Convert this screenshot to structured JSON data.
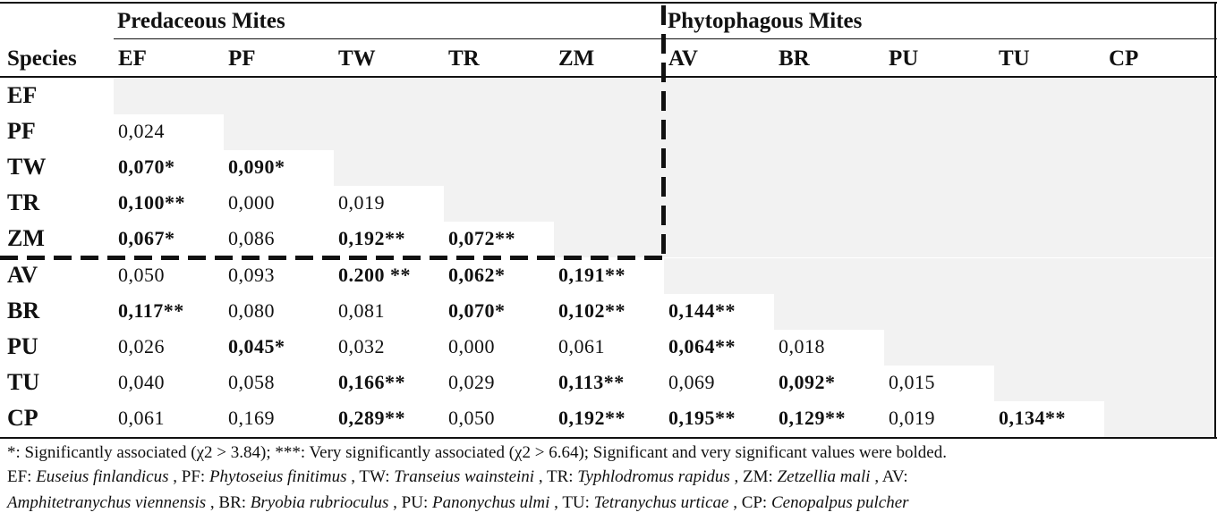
{
  "table": {
    "group_predaceous": "Predaceous Mites",
    "group_phytophagous": "Phytophagous Mites",
    "species_header": "Species",
    "columns": [
      "EF",
      "PF",
      "TW",
      "TR",
      "ZM",
      "AV",
      "BR",
      "PU",
      "TU",
      "CP"
    ],
    "rows": [
      {
        "label": "EF",
        "cells": []
      },
      {
        "label": "PF",
        "cells": [
          {
            "v": "0,024",
            "b": false
          }
        ]
      },
      {
        "label": "TW",
        "cells": [
          {
            "v": "0,070*",
            "b": true
          },
          {
            "v": "0,090*",
            "b": true
          }
        ]
      },
      {
        "label": "TR",
        "cells": [
          {
            "v": "0,100**",
            "b": true
          },
          {
            "v": "0,000",
            "b": false
          },
          {
            "v": "0,019",
            "b": false
          }
        ]
      },
      {
        "label": "ZM",
        "cells": [
          {
            "v": "0,067*",
            "b": true
          },
          {
            "v": "0,086",
            "b": false
          },
          {
            "v": "0,192**",
            "b": true
          },
          {
            "v": "0,072**",
            "b": true
          }
        ]
      },
      {
        "label": "AV",
        "cells": [
          {
            "v": "0,050",
            "b": false
          },
          {
            "v": "0,093",
            "b": false
          },
          {
            "v": "0.200 **",
            "b": true
          },
          {
            "v": "0,062*",
            "b": true
          },
          {
            "v": "0,191**",
            "b": true
          }
        ]
      },
      {
        "label": "BR",
        "cells": [
          {
            "v": "0,117**",
            "b": true
          },
          {
            "v": "0,080",
            "b": false
          },
          {
            "v": "0,081",
            "b": false
          },
          {
            "v": "0,070*",
            "b": true
          },
          {
            "v": "0,102**",
            "b": true
          },
          {
            "v": "0,144**",
            "b": true
          }
        ]
      },
      {
        "label": "PU",
        "cells": [
          {
            "v": "0,026",
            "b": false
          },
          {
            "v": "0,045*",
            "b": true
          },
          {
            "v": "0,032",
            "b": false
          },
          {
            "v": "0,000",
            "b": false
          },
          {
            "v": "0,061",
            "b": false
          },
          {
            "v": "0,064**",
            "b": true
          },
          {
            "v": "0,018",
            "b": false
          }
        ]
      },
      {
        "label": "TU",
        "cells": [
          {
            "v": "0,040",
            "b": false
          },
          {
            "v": "0,058",
            "b": false
          },
          {
            "v": "0,166**",
            "b": true
          },
          {
            "v": "0,029",
            "b": false
          },
          {
            "v": "0,113**",
            "b": true
          },
          {
            "v": "0,069",
            "b": false
          },
          {
            "v": "0,092*",
            "b": true
          },
          {
            "v": "0,015",
            "b": false
          }
        ]
      },
      {
        "label": "CP",
        "cells": [
          {
            "v": "0,061",
            "b": false
          },
          {
            "v": "0,169",
            "b": false
          },
          {
            "v": "0,289**",
            "b": true
          },
          {
            "v": "0,050",
            "b": false
          },
          {
            "v": "0,192**",
            "b": true
          },
          {
            "v": "0,195**",
            "b": true
          },
          {
            "v": "0,129**",
            "b": true
          },
          {
            "v": "0,019",
            "b": false
          },
          {
            "v": "0,134**",
            "b": true
          }
        ]
      }
    ]
  },
  "footnote1": "*: Significantly associated (χ2 > 3.84); ***: Very significantly associated (χ2 > 6.64); Significant and very significant values were bolded.",
  "footnote2": [
    {
      "abbr": "EF: ",
      "name": "Euseius finlandicus"
    },
    {
      "abbr": " , PF: ",
      "name": "Phytoseius finitimus"
    },
    {
      "abbr": " , TW: ",
      "name": "Transeius wainsteini"
    },
    {
      "abbr": " , TR: ",
      "name": "Typhlodromus rapidus"
    },
    {
      "abbr": " , ZM: ",
      "name": "Zetzellia mali"
    },
    {
      "abbr": " , AV:",
      "name": ""
    }
  ],
  "footnote3": [
    {
      "abbr": "",
      "name": "Amphitetranychus viennensis"
    },
    {
      "abbr": " , BR: ",
      "name": "Bryobia rubrioculus"
    },
    {
      "abbr": " , PU: ",
      "name": "Panonychus ulmi"
    },
    {
      "abbr": " , TU: ",
      "name": "Tetranychus urticae"
    },
    {
      "abbr": " , CP: ",
      "name": "Cenopalpus pulcher"
    }
  ]
}
